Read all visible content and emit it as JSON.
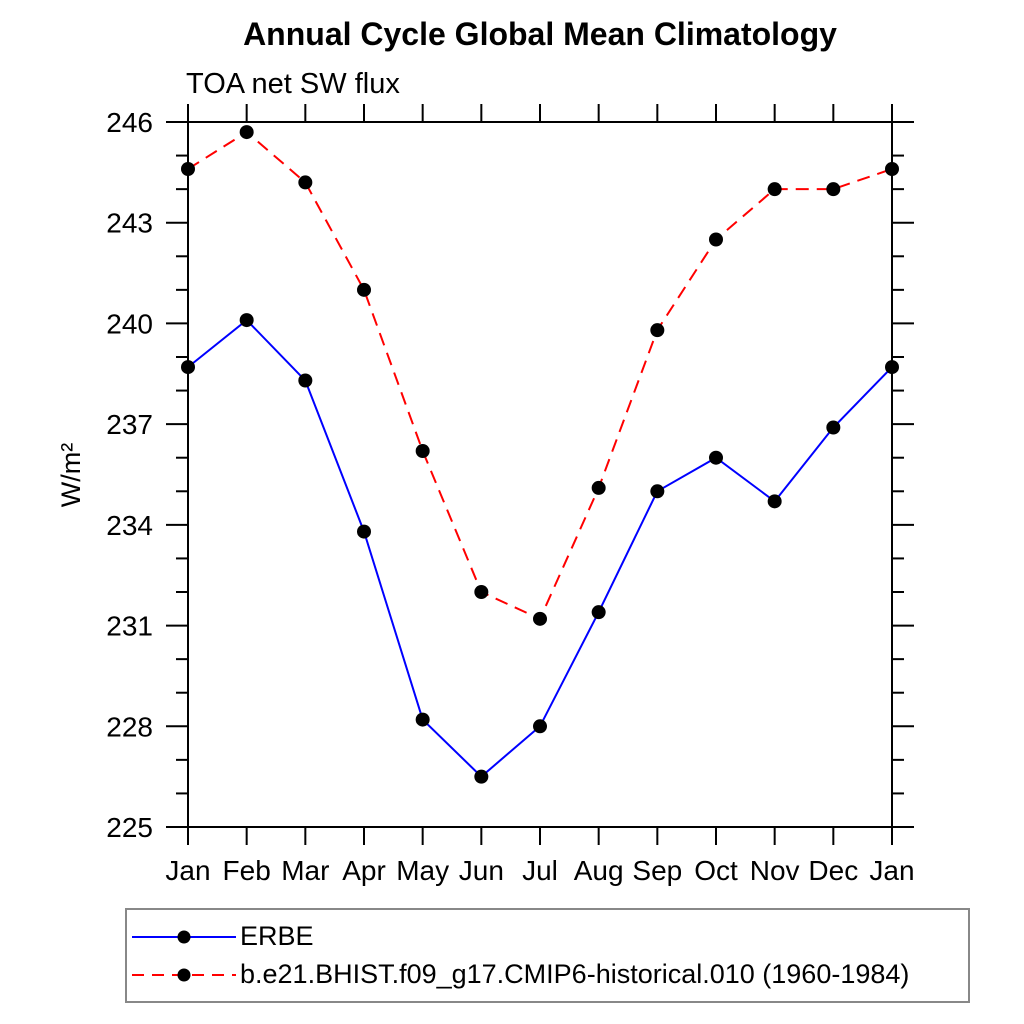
{
  "chart_data": {
    "type": "line",
    "title": "Annual Cycle Global Mean Climatology",
    "subtitle": "TOA net SW flux",
    "xlabel": "",
    "ylabel": "W/m²",
    "categories": [
      "Jan",
      "Feb",
      "Mar",
      "Apr",
      "May",
      "Jun",
      "Jul",
      "Aug",
      "Sep",
      "Oct",
      "Nov",
      "Dec",
      "Jan"
    ],
    "ylim": [
      225,
      246
    ],
    "ytick_step": 3,
    "yminor_step": 1,
    "grid": false,
    "legend_position": "bottom-left",
    "axis_color": "#000000",
    "marker_color": "#000000",
    "series": [
      {
        "name": "ERBE",
        "color": "#0000ff",
        "style": "solid",
        "marker": "circle",
        "values": [
          238.7,
          240.1,
          238.3,
          233.8,
          228.2,
          226.5,
          228.0,
          231.4,
          235.0,
          236.0,
          234.7,
          236.9,
          238.7
        ]
      },
      {
        "name": "b.e21.BHIST.f09_g17.CMIP6-historical.010 (1960-1984)",
        "color": "#ff0000",
        "style": "dashed",
        "marker": "circle",
        "values": [
          244.6,
          245.7,
          244.2,
          241.0,
          236.2,
          232.0,
          231.2,
          235.1,
          239.8,
          242.5,
          244.0,
          244.0,
          244.6
        ]
      }
    ]
  }
}
